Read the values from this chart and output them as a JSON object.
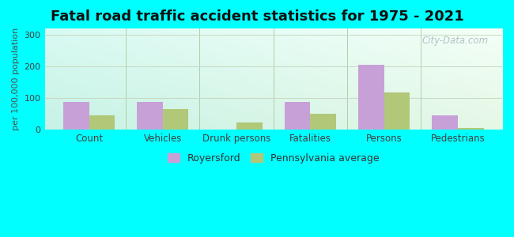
{
  "title": "Fatal road traffic accident statistics for 1975 - 2021",
  "categories": [
    "Count",
    "Vehicles",
    "Drunk persons",
    "Fatalities",
    "Persons",
    "Pedestrians"
  ],
  "royersford": [
    88,
    88,
    0,
    88,
    205,
    45
  ],
  "pa_average": [
    45,
    65,
    22,
    50,
    118,
    6
  ],
  "royersford_color": "#c8a0d8",
  "pa_average_color": "#b0c878",
  "ylabel": "per 100,000 population",
  "ylim": [
    0,
    320
  ],
  "yticks": [
    0,
    100,
    200,
    300
  ],
  "bar_width": 0.35,
  "figure_bg": "#00ffff",
  "grid_color": "#c8d8c0",
  "legend_royersford": "Royersford",
  "legend_pa": "Pennsylvania average",
  "watermark": "City-Data.com",
  "title_fontsize": 13,
  "label_fontsize": 8.5,
  "tick_fontsize": 8,
  "ylabel_fontsize": 8
}
